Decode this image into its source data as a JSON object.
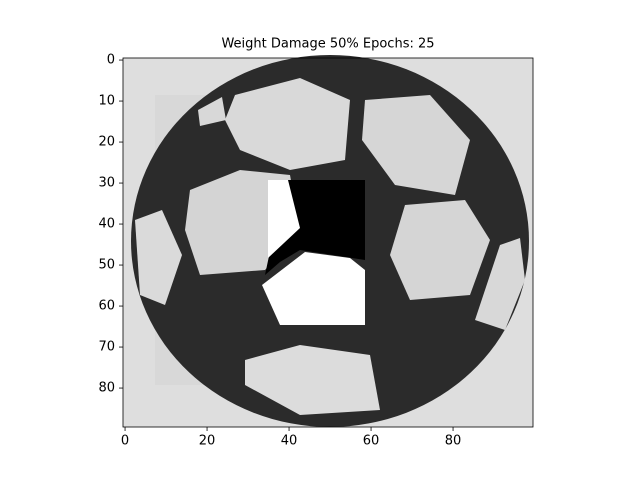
{
  "chart_data": {
    "type": "image",
    "title": "Weight Damage 50% Epochs: 25",
    "xlim": [
      -0.5,
      99.5
    ],
    "ylim": [
      89.5,
      -0.5
    ],
    "xticks": [
      0,
      20,
      40,
      60,
      80
    ],
    "yticks": [
      0,
      10,
      20,
      30,
      40,
      50,
      60,
      70,
      80
    ]
  }
}
